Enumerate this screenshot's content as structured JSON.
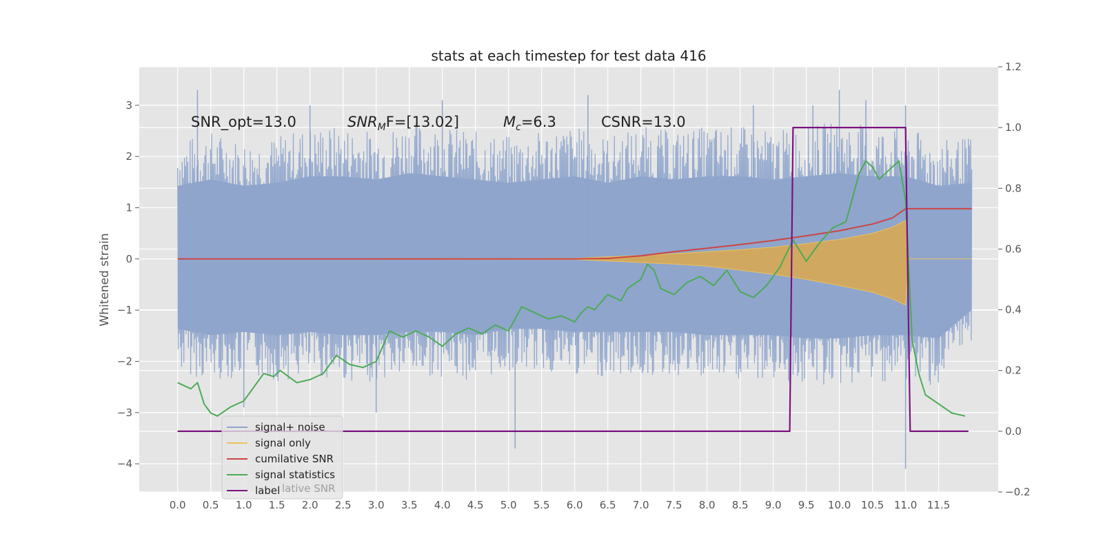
{
  "chart_data": {
    "type": "line",
    "title": "stats at each timestep for test data 416",
    "ylabel": "Whitened strain",
    "xlabel": "",
    "xlim": [
      -0.58,
      12.4
    ],
    "ylim": [
      -4.55,
      3.75
    ],
    "y2lim": [
      -0.2,
      1.2
    ],
    "grid": true,
    "legend_position": "lower-left",
    "x_ticks": [
      "0.0",
      "0.5",
      "1.0",
      "1.5",
      "2.0",
      "2.5",
      "3.0",
      "3.5",
      "4.0",
      "4.5",
      "5.0",
      "5.5",
      "6.0",
      "6.5",
      "7.0",
      "7.5",
      "8.0",
      "8.5",
      "9.0",
      "9.5",
      "10.0",
      "10.5",
      "11.0",
      "11.5"
    ],
    "y_ticks": [
      "3",
      "2",
      "1",
      "0",
      "−1",
      "−2",
      "−3",
      "−4"
    ],
    "y2_ticks": [
      "1.2",
      "1.0",
      "0.8",
      "0.6",
      "0.4",
      "0.2",
      "0.0",
      "−0.2"
    ],
    "annotations": {
      "snr_opt": "SNR_opt=13.0",
      "snr_mf_sym": "SNR",
      "snr_mf_sub": "M",
      "snr_mf_tail": "F=[13.02]",
      "mc_sym": "M",
      "mc_sub": "c",
      "mc_tail": "=6.3",
      "csnr": "CSNR=13.0"
    },
    "legend": [
      {
        "label": "signal+ noise",
        "color": "#8fa5cc"
      },
      {
        "label": "signal only",
        "color": "#ebc35a"
      },
      {
        "label": "cumilative SNR",
        "color": "#cc4444"
      },
      {
        "label": "signal statistics",
        "color": "#4caa57"
      },
      {
        "label": "label",
        "color": "#7b1180"
      }
    ],
    "legend_overlap_text": "lative SNR",
    "series": [
      {
        "name": "signal+ noise",
        "axis": "left",
        "envelope": true,
        "x": [
          0.0,
          0.5,
          1.0,
          1.5,
          2.0,
          2.5,
          3.0,
          3.5,
          4.0,
          4.5,
          5.0,
          5.5,
          6.0,
          6.5,
          7.0,
          7.5,
          8.0,
          8.5,
          9.0,
          9.5,
          10.0,
          10.5,
          11.0,
          11.5,
          12.0
        ],
        "upper": [
          2.3,
          2.5,
          2.3,
          2.4,
          2.6,
          2.6,
          2.5,
          2.7,
          2.6,
          2.5,
          2.4,
          2.5,
          2.6,
          2.4,
          2.6,
          2.5,
          2.6,
          2.6,
          2.5,
          2.6,
          2.7,
          2.6,
          2.6,
          2.3,
          2.4
        ],
        "lower": [
          -2.2,
          -2.4,
          -2.3,
          -2.4,
          -2.3,
          -2.4,
          -2.4,
          -2.3,
          -2.3,
          -2.4,
          -2.2,
          -2.2,
          -2.3,
          -2.3,
          -2.3,
          -2.3,
          -2.4,
          -2.4,
          -2.4,
          -2.5,
          -2.5,
          -2.4,
          -2.4,
          -2.5,
          -1.6
        ],
        "spikes": [
          [
            0.3,
            3.3
          ],
          [
            1.0,
            -2.9
          ],
          [
            2.0,
            3.0
          ],
          [
            3.0,
            -3.0
          ],
          [
            4.0,
            3.1
          ],
          [
            5.1,
            -3.7
          ],
          [
            6.2,
            3.2
          ],
          [
            8.7,
            3.0
          ],
          [
            9.6,
            3.0
          ],
          [
            10.0,
            3.3
          ],
          [
            10.4,
            3.1
          ],
          [
            11.0,
            -4.1
          ],
          [
            11.0,
            3.0
          ]
        ]
      },
      {
        "name": "signal only",
        "axis": "left",
        "x": [
          0.0,
          6.0,
          6.5,
          7.0,
          7.5,
          8.0,
          8.5,
          9.0,
          9.5,
          10.0,
          10.5,
          10.8,
          11.0,
          11.05,
          12.0
        ],
        "upper": [
          0.0,
          0.01,
          0.04,
          0.07,
          0.1,
          0.14,
          0.18,
          0.23,
          0.3,
          0.38,
          0.5,
          0.62,
          0.75,
          0.0,
          0.0
        ],
        "lower": [
          0.0,
          -0.01,
          -0.04,
          -0.07,
          -0.1,
          -0.14,
          -0.22,
          -0.3,
          -0.4,
          -0.52,
          -0.65,
          -0.78,
          -0.9,
          0.0,
          0.0
        ]
      },
      {
        "name": "cumilative SNR",
        "axis": "left",
        "x": [
          0.0,
          6.0,
          6.5,
          7.0,
          7.5,
          8.0,
          8.5,
          9.0,
          9.5,
          10.0,
          10.5,
          10.8,
          11.0,
          12.0
        ],
        "y": [
          0.0,
          0.0,
          0.01,
          0.06,
          0.14,
          0.21,
          0.28,
          0.36,
          0.45,
          0.55,
          0.68,
          0.8,
          0.98,
          0.98
        ]
      },
      {
        "name": "signal statistics",
        "axis": "right",
        "x": [
          0.0,
          0.1,
          0.2,
          0.3,
          0.4,
          0.5,
          0.6,
          0.8,
          1.0,
          1.1,
          1.3,
          1.45,
          1.55,
          1.8,
          2.0,
          2.2,
          2.4,
          2.6,
          2.8,
          3.0,
          3.2,
          3.4,
          3.6,
          3.8,
          4.0,
          4.2,
          4.4,
          4.6,
          4.8,
          5.0,
          5.2,
          5.4,
          5.6,
          5.8,
          6.0,
          6.1,
          6.2,
          6.3,
          6.5,
          6.7,
          6.8,
          7.0,
          7.1,
          7.2,
          7.3,
          7.5,
          7.7,
          7.9,
          8.1,
          8.3,
          8.5,
          8.7,
          8.9,
          9.1,
          9.3,
          9.5,
          9.7,
          9.9,
          10.1,
          10.3,
          10.4,
          10.5,
          10.6,
          10.75,
          10.9,
          11.0,
          11.1,
          11.2,
          11.3,
          11.5,
          11.7,
          11.9
        ],
        "y": [
          0.16,
          0.15,
          0.14,
          0.16,
          0.09,
          0.06,
          0.05,
          0.08,
          0.1,
          0.13,
          0.19,
          0.18,
          0.2,
          0.16,
          0.17,
          0.19,
          0.25,
          0.22,
          0.21,
          0.23,
          0.33,
          0.31,
          0.33,
          0.31,
          0.28,
          0.32,
          0.34,
          0.32,
          0.35,
          0.33,
          0.41,
          0.39,
          0.37,
          0.38,
          0.36,
          0.39,
          0.41,
          0.4,
          0.45,
          0.43,
          0.47,
          0.5,
          0.55,
          0.53,
          0.47,
          0.45,
          0.49,
          0.51,
          0.48,
          0.53,
          0.46,
          0.44,
          0.48,
          0.54,
          0.63,
          0.56,
          0.62,
          0.67,
          0.69,
          0.85,
          0.89,
          0.87,
          0.83,
          0.86,
          0.89,
          0.76,
          0.3,
          0.19,
          0.12,
          0.09,
          0.06,
          0.05
        ]
      },
      {
        "name": "label",
        "axis": "right",
        "x": [
          0.0,
          9.25,
          9.3,
          11.0,
          11.07,
          11.95
        ],
        "y": [
          0.0,
          0.0,
          1.0,
          1.0,
          0.0,
          0.0
        ]
      }
    ]
  }
}
